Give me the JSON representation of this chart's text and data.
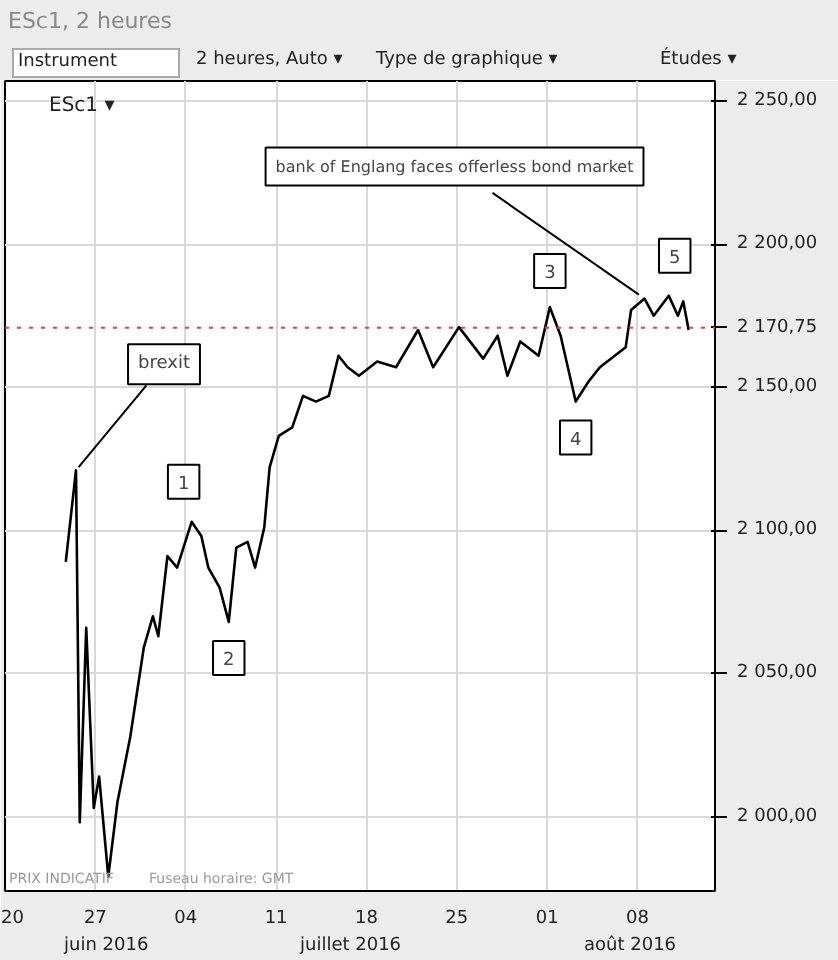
{
  "chart_data": {
    "type": "line",
    "title": "ESc1, 2 heures",
    "x": [
      "2016-06-24T17:00",
      "2016-06-25T12:00",
      "2016-06-25T19:00",
      "2016-06-26T07:00",
      "2016-06-26T21:00",
      "2016-06-27T07:00",
      "2016-06-28T00:00",
      "2016-06-28T17:00",
      "2016-06-29T17:00",
      "2016-06-30T18:00",
      "2016-07-01T11:00",
      "2016-07-01T21:00",
      "2016-07-02T14:00",
      "2016-07-03T08:00",
      "2016-07-04T11:00",
      "2016-07-05T05:00",
      "2016-07-05T18:00",
      "2016-07-06T15:00",
      "2016-07-07T08:00",
      "2016-07-07T22:00",
      "2016-07-08T19:00",
      "2016-07-09T09:00",
      "2016-07-10T02:00",
      "2016-07-10T12:00",
      "2016-07-11T05:00",
      "2016-07-12T06:00",
      "2016-07-13T02:00",
      "2016-07-14T02:00",
      "2016-07-15T02:00",
      "2016-07-15T20:00",
      "2016-07-16T13:00",
      "2016-07-17T10:00",
      "2016-07-18T20:00",
      "2016-07-20T07:00",
      "2016-07-22T00:00",
      "2016-07-23T04:00",
      "2016-07-25T04:00",
      "2016-07-27T01:00",
      "2016-07-28T04:00",
      "2016-07-28T22:00",
      "2016-07-29T22:00",
      "2016-07-31T08:00",
      "2016-08-01T05:00",
      "2016-08-02T01:00",
      "2016-08-03T05:00",
      "2016-08-04T05:00",
      "2016-08-05T02:00",
      "2016-08-07T02:00",
      "2016-08-07T12:00",
      "2016-08-08T13:00",
      "2016-08-09T06:00",
      "2016-08-10T10:00",
      "2016-08-11T03:00",
      "2016-08-11T13:00",
      "2016-08-11T23:00"
    ],
    "series": [
      {
        "color": "#000000",
        "values": [
          2089,
          2121,
          1998,
          2066,
          2003,
          2014,
          1979,
          2005,
          2028,
          2059,
          2070,
          2063,
          2091,
          2087,
          2103,
          2098,
          2087,
          2080,
          2068,
          2094,
          2096,
          2087,
          2101,
          2122,
          2133,
          2136,
          2147,
          2145,
          2147,
          2161,
          2157,
          2154,
          2159,
          2157,
          2170,
          2157,
          2171,
          2160,
          2168,
          2154,
          2166,
          2161,
          2178,
          2168,
          2145,
          2152,
          2157,
          2164,
          2177,
          2181,
          2175,
          2182,
          2175,
          2180,
          2170
        ]
      }
    ],
    "xlim": [
      "2016-06-20",
      "2016-08-14"
    ],
    "ylim": [
      1974,
      2257
    ],
    "xticks": [
      {
        "value": "2016-06-20",
        "label": "20"
      },
      {
        "value": "2016-06-27",
        "label": "27"
      },
      {
        "value": "2016-07-04",
        "label": "04"
      },
      {
        "value": "2016-07-11",
        "label": "11"
      },
      {
        "value": "2016-07-18",
        "label": "18"
      },
      {
        "value": "2016-07-25",
        "label": "25"
      },
      {
        "value": "2016-08-01",
        "label": "01"
      },
      {
        "value": "2016-08-08",
        "label": "08"
      }
    ],
    "yticks": [
      {
        "value": 2000,
        "label": "2 000,00"
      },
      {
        "value": 2050,
        "label": "2 050,00"
      },
      {
        "value": 2100,
        "label": "2 100,00"
      },
      {
        "value": 2150,
        "label": "2 150,00"
      },
      {
        "value": 2200,
        "label": "2 200,00"
      },
      {
        "value": 2250,
        "label": "2 250,00"
      }
    ],
    "grid": true,
    "ref_lines": [
      {
        "axis": "y",
        "value": 2170.75,
        "label": "2 170,75",
        "color": "#e04040",
        "line_style": "dotted"
      }
    ],
    "annotations": [
      "Instrument",
      "2 heures, Auto ▾",
      "Type de graphique ▾",
      "Études ▾",
      "ESc1 ▾",
      "PRIX INDICATIF",
      "Fuseau horaire: GMT",
      "juin 2016",
      "juillet 2016",
      "août 2016",
      {
        "text": "brexit",
        "x": "2016-06-25T12:00",
        "y": 2121
      },
      {
        "text": "1",
        "x": "2016-07-04T11:00",
        "y": 2103
      },
      {
        "text": "2",
        "x": "2016-07-07T08:00",
        "y": 2068
      },
      {
        "text": "3",
        "x": "2016-08-01T05:00",
        "y": 2178
      },
      {
        "text": "4",
        "x": "2016-08-03T05:00",
        "y": 2145
      },
      {
        "text": "5",
        "x": "2016-08-10T10:00",
        "y": 2182
      },
      {
        "text": "bank of Englang faces offerless bond market",
        "x": "2016-08-08T13:00",
        "y": 2181
      }
    ]
  }
}
